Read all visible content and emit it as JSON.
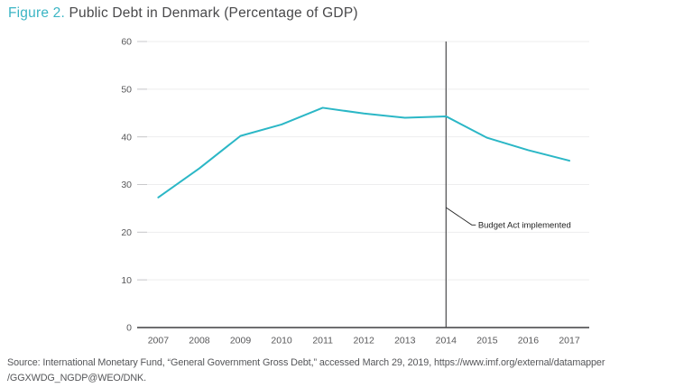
{
  "title": {
    "label": "Figure 2.",
    "text": " Public Debt in Denmark (Percentage of GDP)"
  },
  "chart_data": {
    "type": "line",
    "title": "Public Debt in Denmark (Percentage of GDP)",
    "x": [
      2007,
      2008,
      2009,
      2010,
      2011,
      2012,
      2013,
      2014,
      2015,
      2016,
      2017
    ],
    "series": [
      {
        "name": "Public debt (percentage of GDP)",
        "values": [
          27.3,
          33.4,
          40.2,
          42.6,
          46.1,
          44.9,
          44.0,
          44.3,
          39.8,
          37.2,
          35.0
        ]
      }
    ],
    "xlabel": "",
    "ylabel": "",
    "ylim": [
      0,
      60
    ],
    "yticks": [
      0,
      10,
      20,
      30,
      40,
      50,
      60
    ],
    "grid": "horizontal",
    "legend": "none",
    "colors": {
      "line": "#2bb7c6",
      "axis": "#3f3f41",
      "marker_line": "#4a4a4c",
      "grid": "#ededee",
      "tick": "#c9c9cb",
      "tick_label": "#58585a",
      "accent_teal": "#3bb5c4"
    },
    "marker": {
      "year": 2014
    },
    "annotation": {
      "label": "Budget Act implemented"
    }
  },
  "source": {
    "line1": "Source: International Monetary Fund, “General Government Gross Debt,” accessed March 29, 2019, https://www.imf.org/external/datamapper",
    "line2": "/GGXWDG_NGDP@WEO/DNK."
  }
}
